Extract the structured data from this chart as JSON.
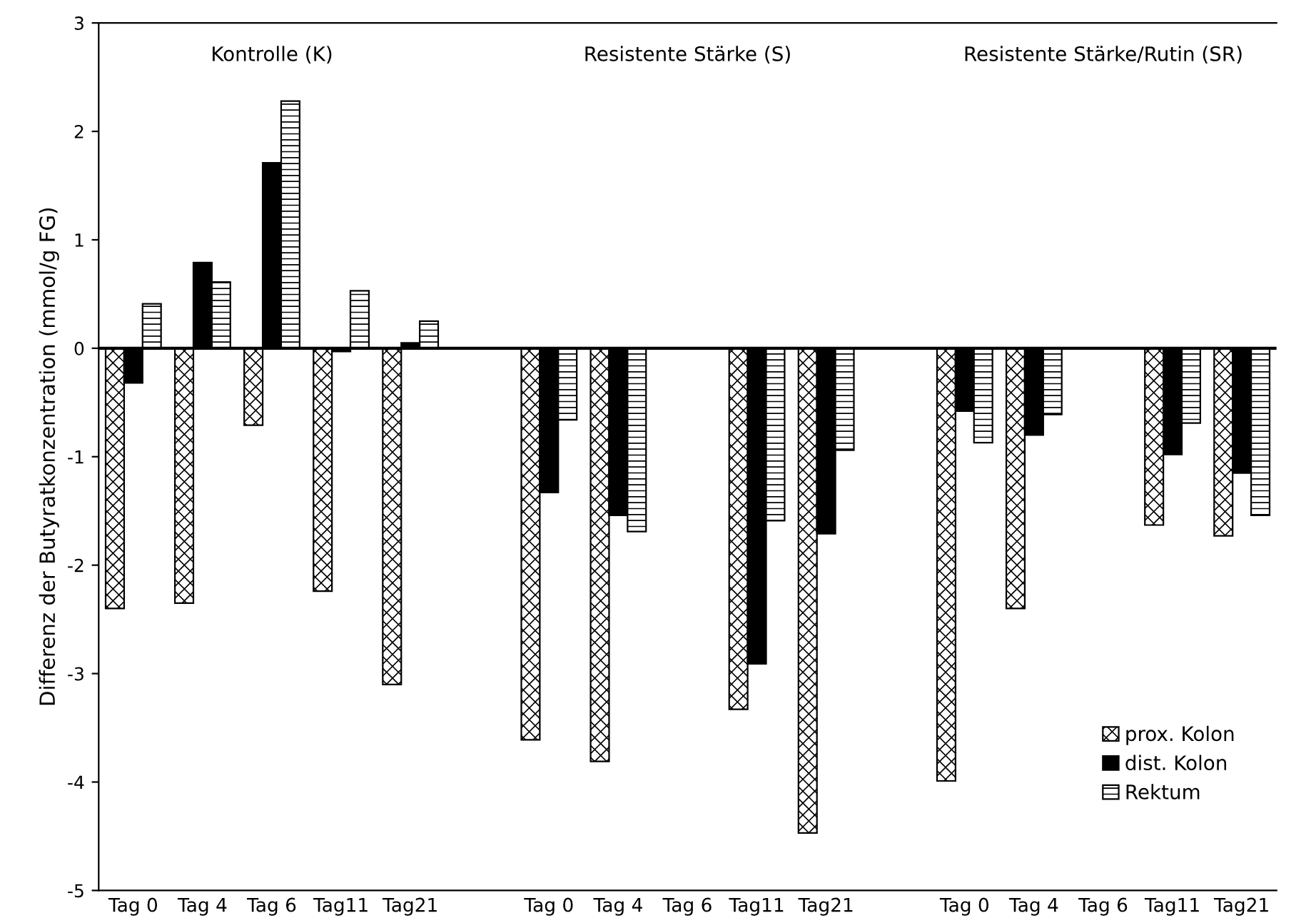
{
  "chart_data": {
    "type": "bar",
    "categories": [
      "Tag 0",
      "Tag 4",
      "Tag 6",
      "Tag11",
      "Tag21",
      null,
      "Tag 0",
      "Tag 4",
      "Tag 6",
      "Tag11",
      "Tag21",
      null,
      "Tag 0",
      "Tag 4",
      "Tag 6",
      "Tag11",
      "Tag21"
    ],
    "series": [
      {
        "name": "prox. Kolon",
        "color": "#000000",
        "values": [
          -2.4,
          -2.35,
          -0.71,
          -2.24,
          -3.1,
          null,
          -3.61,
          -3.81,
          null,
          -3.33,
          -4.47,
          null,
          -3.99,
          -2.4,
          null,
          -1.63,
          -1.73
        ]
      },
      {
        "name": "dist. Kolon",
        "color": "#000000",
        "values": [
          -0.32,
          0.79,
          1.71,
          -0.03,
          0.05,
          null,
          -1.33,
          -1.54,
          null,
          -2.91,
          -1.71,
          null,
          -0.58,
          -0.8,
          null,
          -0.98,
          -1.15
        ]
      },
      {
        "name": "Rektum",
        "color": "#000000",
        "values": [
          0.41,
          0.61,
          2.28,
          0.53,
          0.25,
          null,
          -0.66,
          -1.69,
          null,
          -1.59,
          -0.94,
          null,
          -0.87,
          -0.61,
          null,
          -0.69,
          -1.54
        ]
      }
    ],
    "ylabel": "Differenz der Butyratkonzentration (mmol/g FG)",
    "annotations": [
      "Kontrolle (K)",
      "Resistente Stärke (S)",
      "Resistente Stärke/Rutin (SR)"
    ],
    "ylim": [
      -5,
      3
    ],
    "yticks": [
      -5,
      -4,
      -3,
      -2,
      -1,
      0,
      1,
      2,
      3
    ],
    "ref_lines": [
      {
        "axis": "y",
        "value": 0,
        "color": "#000000"
      }
    ],
    "grid": false,
    "legend": "bottom right"
  }
}
